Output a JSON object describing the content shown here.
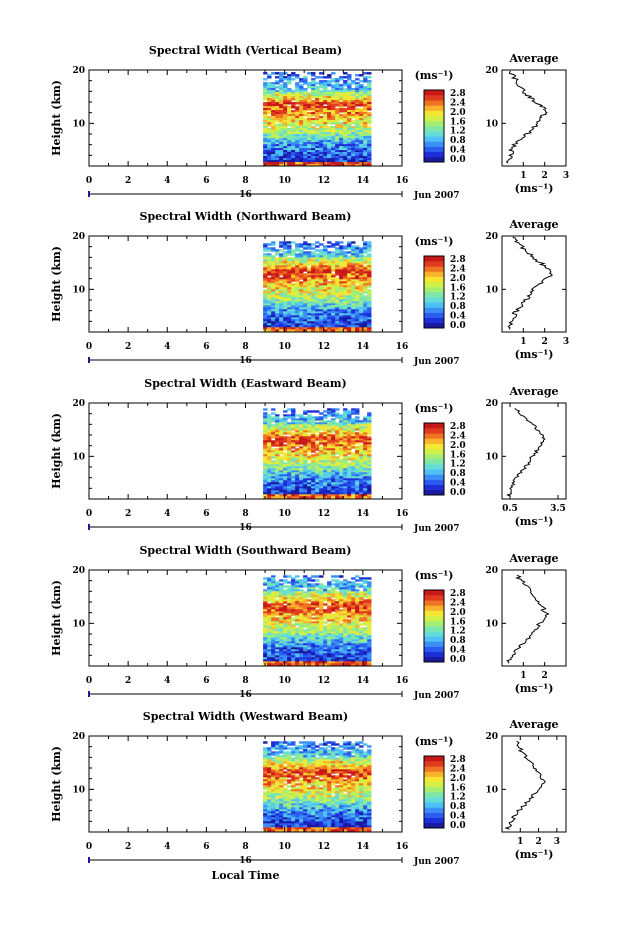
{
  "figure": {
    "x_label": "Local Time",
    "day_label": "16",
    "date_label": "Jun 2007",
    "y_label": "Height (km)",
    "unit_label": "(ms⁻¹)",
    "average_title": "Average",
    "colors": [
      "#1a1aa0",
      "#1f2fd8",
      "#2a5cf0",
      "#3a8ef5",
      "#4fc0f5",
      "#66dcd8",
      "#7ee6a8",
      "#a6ee72",
      "#d2f048",
      "#f6e634",
      "#f8b32a",
      "#f07424",
      "#e23a1e",
      "#c81818"
    ]
  },
  "chart_data": [
    {
      "type": "heatmap",
      "title": "Spectral Width (Vertical Beam)",
      "xlim": [
        0,
        16
      ],
      "ylim": [
        2,
        20
      ],
      "x_ticks": [
        "0",
        "2",
        "4",
        "6",
        "8",
        "10",
        "12",
        "14",
        "16"
      ],
      "y_ticks": [
        "10",
        "20"
      ],
      "data_x_range": [
        8.9,
        14.4
      ],
      "data_y_range": [
        2.3,
        19.6
      ],
      "colorbar_ticks": [
        "0.0",
        "0.4",
        "0.8",
        "1.2",
        "1.6",
        "2.0",
        "2.4",
        "2.8"
      ],
      "average": {
        "xlim": [
          0,
          3
        ],
        "x_ticks": [
          "1",
          "2",
          "3"
        ],
        "y_ticks": [
          "10",
          "20"
        ],
        "profile": [
          [
            0.3,
            2.5
          ],
          [
            0.4,
            4.0
          ],
          [
            0.5,
            5.5
          ],
          [
            0.8,
            7.0
          ],
          [
            1.2,
            8.0
          ],
          [
            1.6,
            9.5
          ],
          [
            1.8,
            11.0
          ],
          [
            2.1,
            12.0
          ],
          [
            1.9,
            13.2
          ],
          [
            1.5,
            14.2
          ],
          [
            1.1,
            15.5
          ],
          [
            0.8,
            17.0
          ],
          [
            0.6,
            18.5
          ],
          [
            0.4,
            19.8
          ]
        ]
      }
    },
    {
      "type": "heatmap",
      "title": "Spectral Width (Northward Beam)",
      "xlim": [
        0,
        16
      ],
      "ylim": [
        2,
        20
      ],
      "x_ticks": [
        "0",
        "2",
        "4",
        "6",
        "8",
        "10",
        "12",
        "14",
        "16"
      ],
      "y_ticks": [
        "10",
        "20"
      ],
      "data_x_range": [
        8.9,
        14.4
      ],
      "data_y_range": [
        2.3,
        19.0
      ],
      "colorbar_ticks": [
        "0.0",
        "0.4",
        "0.8",
        "1.2",
        "1.6",
        "2.0",
        "2.4",
        "2.8"
      ],
      "average": {
        "xlim": [
          0,
          3
        ],
        "x_ticks": [
          "1",
          "2",
          "3"
        ],
        "y_ticks": [
          "10",
          "20"
        ],
        "profile": [
          [
            0.3,
            2.5
          ],
          [
            0.5,
            4.0
          ],
          [
            0.6,
            5.5
          ],
          [
            0.9,
            7.0
          ],
          [
            1.2,
            8.5
          ],
          [
            1.5,
            10.0
          ],
          [
            1.9,
            11.5
          ],
          [
            2.3,
            12.8
          ],
          [
            2.1,
            14.2
          ],
          [
            1.6,
            15.5
          ],
          [
            1.2,
            17.0
          ],
          [
            0.8,
            18.5
          ],
          [
            0.5,
            19.8
          ]
        ]
      }
    },
    {
      "type": "heatmap",
      "title": "Spectral Width (Eastward Beam)",
      "xlim": [
        0,
        16
      ],
      "ylim": [
        2,
        20
      ],
      "x_ticks": [
        "0",
        "2",
        "4",
        "6",
        "8",
        "10",
        "12",
        "14",
        "16"
      ],
      "y_ticks": [
        "10",
        "20"
      ],
      "data_x_range": [
        8.9,
        14.4
      ],
      "data_y_range": [
        2.3,
        19.0
      ],
      "colorbar_ticks": [
        "0.0",
        "0.4",
        "0.8",
        "1.2",
        "1.6",
        "2.0",
        "2.4",
        "2.8"
      ],
      "average": {
        "xlim": [
          0.0,
          4.0
        ],
        "x_ticks": [
          "0.5",
          "3.5"
        ],
        "y_ticks": [
          "10",
          "20"
        ],
        "profile": [
          [
            0.4,
            2.5
          ],
          [
            0.6,
            4.0
          ],
          [
            0.8,
            5.5
          ],
          [
            1.2,
            7.0
          ],
          [
            1.6,
            8.5
          ],
          [
            1.9,
            10.0
          ],
          [
            2.3,
            11.5
          ],
          [
            2.6,
            13.0
          ],
          [
            2.4,
            14.5
          ],
          [
            1.9,
            16.0
          ],
          [
            1.3,
            17.5
          ],
          [
            0.8,
            19.0
          ]
        ]
      }
    },
    {
      "type": "heatmap",
      "title": "Spectral Width (Southward Beam)",
      "xlim": [
        0,
        16
      ],
      "ylim": [
        2,
        20
      ],
      "x_ticks": [
        "0",
        "2",
        "4",
        "6",
        "8",
        "10",
        "12",
        "14",
        "16"
      ],
      "y_ticks": [
        "10",
        "20"
      ],
      "data_x_range": [
        8.9,
        14.4
      ],
      "data_y_range": [
        2.3,
        19.0
      ],
      "colorbar_ticks": [
        "0.0",
        "0.4",
        "0.8",
        "1.2",
        "1.6",
        "2.0",
        "2.4",
        "2.8"
      ],
      "average": {
        "xlim": [
          0,
          3
        ],
        "x_ticks": [
          "1",
          "2"
        ],
        "y_ticks": [
          "10",
          "20"
        ],
        "profile": [
          [
            0.3,
            2.5
          ],
          [
            0.5,
            4.0
          ],
          [
            0.8,
            5.5
          ],
          [
            1.2,
            7.0
          ],
          [
            1.5,
            8.5
          ],
          [
            1.8,
            10.0
          ],
          [
            2.1,
            11.5
          ],
          [
            1.9,
            13.0
          ],
          [
            1.6,
            14.5
          ],
          [
            1.3,
            16.0
          ],
          [
            1.0,
            17.5
          ],
          [
            0.7,
            19.0
          ]
        ]
      }
    },
    {
      "type": "heatmap",
      "title": "Spectral Width (Westward Beam)",
      "xlim": [
        0,
        16
      ],
      "ylim": [
        2,
        20
      ],
      "x_ticks": [
        "0",
        "2",
        "4",
        "6",
        "8",
        "10",
        "12",
        "14",
        "16"
      ],
      "y_ticks": [
        "10",
        "20"
      ],
      "data_x_range": [
        8.9,
        14.4
      ],
      "data_y_range": [
        2.3,
        19.0
      ],
      "colorbar_ticks": [
        "0.0",
        "0.4",
        "0.8",
        "1.2",
        "1.6",
        "2.0",
        "2.4",
        "2.8"
      ],
      "average": {
        "xlim": [
          0,
          3.5
        ],
        "x_ticks": [
          "1",
          "2",
          "3"
        ],
        "y_ticks": [
          "10",
          "20"
        ],
        "profile": [
          [
            0.3,
            2.5
          ],
          [
            0.5,
            4.0
          ],
          [
            0.8,
            5.5
          ],
          [
            1.2,
            7.0
          ],
          [
            1.6,
            8.5
          ],
          [
            2.0,
            10.0
          ],
          [
            2.3,
            11.5
          ],
          [
            2.0,
            13.0
          ],
          [
            1.7,
            14.5
          ],
          [
            1.3,
            16.0
          ],
          [
            1.0,
            17.5
          ],
          [
            0.8,
            19.0
          ]
        ]
      }
    }
  ]
}
